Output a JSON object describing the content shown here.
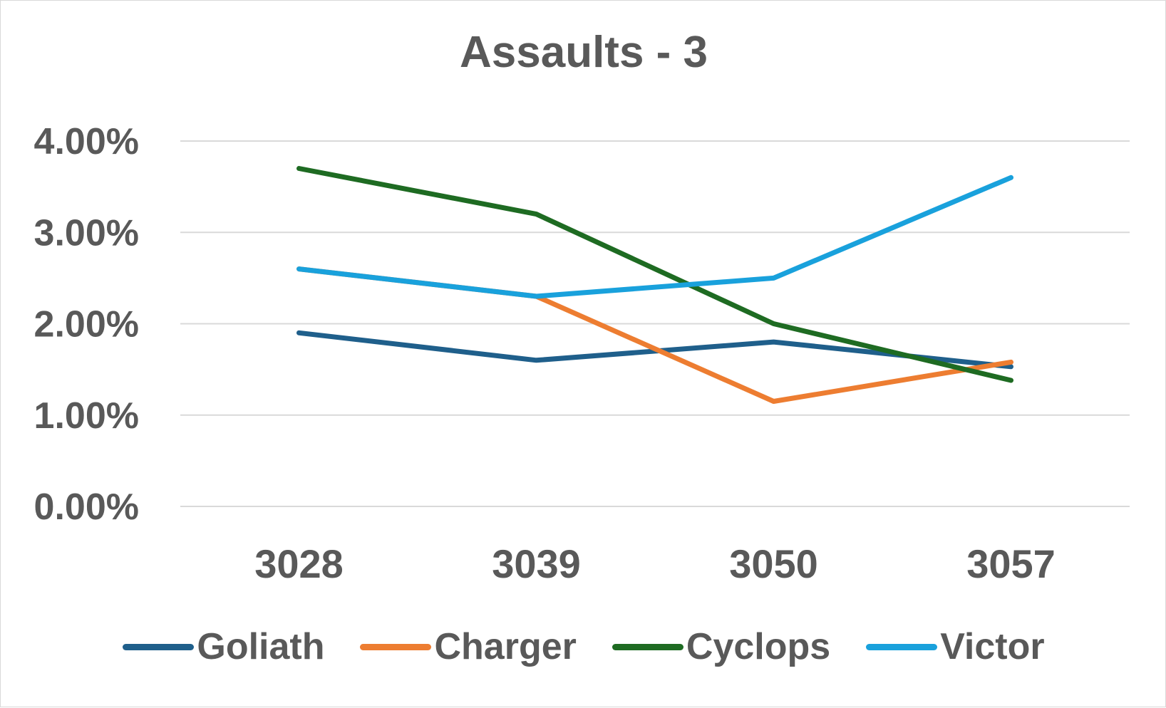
{
  "chart_data": {
    "type": "line",
    "title": "Assaults - 3",
    "xlabel": "",
    "ylabel": "",
    "categories": [
      "3028",
      "3039",
      "3050",
      "3057"
    ],
    "y_ticks": [
      "0.00%",
      "1.00%",
      "2.00%",
      "3.00%",
      "4.00%"
    ],
    "ylim": [
      0,
      4
    ],
    "grid": true,
    "legend_position": "bottom",
    "series": [
      {
        "name": "Goliath",
        "color": "#1f5f8b",
        "values": [
          1.9,
          1.6,
          1.8,
          1.53
        ]
      },
      {
        "name": "Charger",
        "color": "#ed7d31",
        "values": [
          2.6,
          2.3,
          1.15,
          1.58
        ]
      },
      {
        "name": "Cyclops",
        "color": "#1e6b22",
        "values": [
          3.7,
          3.2,
          2.0,
          1.38
        ]
      },
      {
        "name": "Victor",
        "color": "#19a1dc",
        "values": [
          2.6,
          2.3,
          2.5,
          3.6
        ]
      }
    ]
  },
  "colors": {
    "text": "#595959",
    "gridline": "#d9d9d9",
    "border": "#d9d9d9"
  }
}
